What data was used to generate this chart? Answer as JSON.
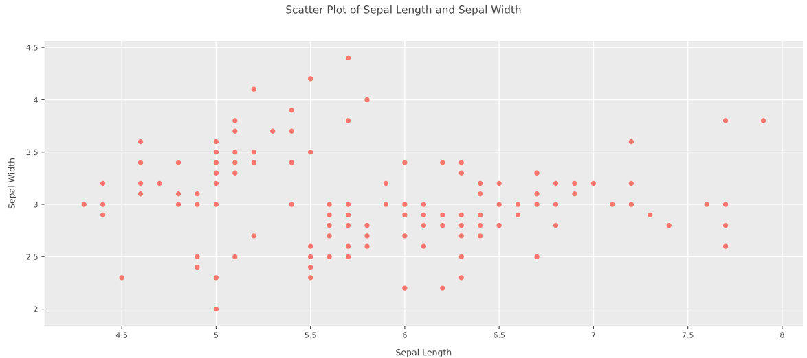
{
  "chart_data": {
    "type": "scatter",
    "title": "Scatter Plot of Sepal Length and Sepal Width",
    "xlabel": "Sepal Length",
    "ylabel": "Sepal Width",
    "x": [
      5.1,
      4.9,
      4.7,
      4.6,
      5.0,
      5.4,
      4.6,
      5.0,
      4.4,
      4.9,
      5.4,
      4.8,
      4.8,
      4.3,
      5.8,
      5.7,
      5.7,
      5.1,
      5.4,
      5.1,
      4.6,
      5.1,
      5.0,
      5.2,
      5.2,
      4.8,
      5.2,
      5.5,
      5.0,
      5.5,
      4.4,
      5.1,
      5.0,
      4.5,
      4.4,
      4.6,
      5.3,
      5.0,
      7.0,
      6.4,
      6.9,
      5.5,
      6.5,
      5.7,
      6.3,
      4.9,
      6.6,
      5.2,
      5.0,
      5.9,
      6.0,
      6.1,
      5.6,
      6.7,
      5.6,
      5.8,
      6.2,
      5.6,
      5.9,
      6.1,
      6.3,
      6.4,
      6.6,
      6.8,
      6.7,
      6.0,
      5.7,
      5.5,
      6.0,
      5.4,
      6.0,
      6.3,
      5.5,
      5.5,
      6.1,
      5.8,
      5.0,
      5.6,
      5.7,
      5.7,
      6.2,
      5.1,
      7.1,
      6.3,
      6.5,
      7.6,
      4.9,
      7.3,
      6.7,
      7.2,
      6.5,
      6.4,
      6.8,
      5.7,
      5.8,
      7.7,
      7.7,
      6.9,
      5.6,
      7.7,
      6.3,
      6.7,
      7.2,
      6.2,
      6.4,
      7.2,
      7.4,
      7.9,
      6.3,
      6.1,
      7.7,
      6.3,
      6.4,
      6.0,
      6.8,
      6.2
    ],
    "values": [
      3.5,
      3.0,
      3.2,
      3.1,
      3.6,
      3.9,
      3.4,
      3.4,
      2.9,
      3.1,
      3.7,
      3.4,
      3.0,
      3.0,
      4.0,
      4.4,
      3.8,
      3.8,
      3.4,
      3.7,
      3.6,
      3.3,
      3.0,
      3.5,
      3.4,
      3.1,
      4.1,
      4.2,
      3.2,
      3.5,
      3.0,
      3.4,
      3.5,
      2.3,
      3.2,
      3.2,
      3.7,
      3.3,
      3.2,
      3.2,
      3.1,
      2.3,
      2.8,
      2.8,
      3.3,
      2.4,
      2.9,
      2.7,
      2.0,
      3.0,
      2.2,
      2.9,
      2.9,
      3.1,
      3.0,
      2.7,
      2.2,
      2.5,
      3.2,
      2.8,
      2.5,
      2.9,
      3.0,
      2.8,
      3.0,
      2.9,
      2.6,
      2.4,
      2.7,
      3.0,
      3.4,
      2.3,
      2.5,
      2.6,
      3.0,
      2.6,
      2.3,
      2.7,
      3.0,
      2.9,
      2.9,
      2.5,
      3.0,
      2.9,
      3.0,
      3.0,
      2.5,
      2.9,
      2.5,
      3.6,
      3.2,
      2.7,
      3.0,
      2.5,
      2.8,
      3.8,
      2.6,
      3.2,
      2.8,
      2.8,
      2.7,
      3.3,
      3.2,
      2.8,
      2.8,
      3.0,
      2.8,
      3.8,
      2.8,
      2.6,
      3.0,
      3.4,
      3.1,
      3.0,
      3.2,
      3.4
    ],
    "color": "#f8766d",
    "marker": "circle",
    "grid": true,
    "xlim": [
      4.09,
      8.11
    ],
    "ylim": [
      1.84,
      4.56
    ],
    "xticks": [
      4.5,
      5,
      5.5,
      6,
      6.5,
      7,
      7.5,
      8
    ],
    "yticks": [
      2,
      2.5,
      3,
      3.5,
      4,
      4.5
    ]
  }
}
